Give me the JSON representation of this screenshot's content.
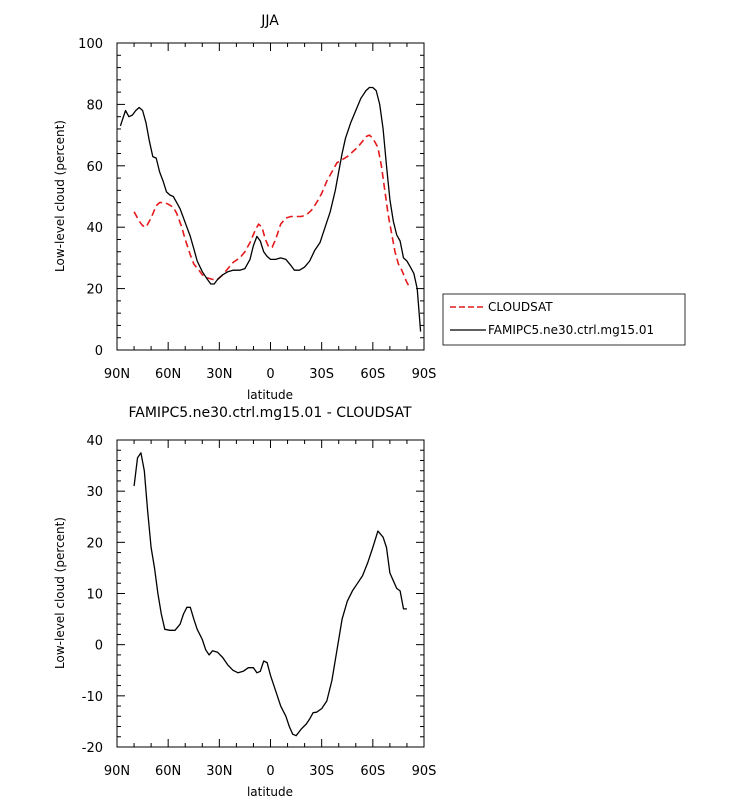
{
  "chart_data": [
    {
      "type": "line",
      "title": "JJA",
      "xlabel": "latitude",
      "ylabel": "Low-level cloud (percent)",
      "xlim": [
        90,
        -90
      ],
      "ylim": [
        0,
        100
      ],
      "x_tick_values": [
        90,
        60,
        30,
        0,
        -30,
        -60,
        -90
      ],
      "x_tick_labels": [
        "90N",
        "60N",
        "30N",
        "0",
        "30S",
        "60S",
        "90S"
      ],
      "y_ticks": [
        0,
        20,
        40,
        60,
        80,
        100
      ],
      "grid": false,
      "legend_position": "right",
      "series": [
        {
          "name": "CLOUDSAT",
          "color": "#e41a1c",
          "dash": "dashed",
          "points": [
            [
              80,
              45
            ],
            [
              77,
              42
            ],
            [
              75,
              40.5
            ],
            [
              73,
              40
            ],
            [
              70,
              43
            ],
            [
              67,
              47
            ],
            [
              65,
              48
            ],
            [
              62,
              48
            ],
            [
              60,
              47.5
            ],
            [
              57,
              46.5
            ],
            [
              55,
              44.5
            ],
            [
              52,
              40
            ],
            [
              50,
              36
            ],
            [
              47,
              31
            ],
            [
              45,
              28
            ],
            [
              42,
              26
            ],
            [
              40,
              24.5
            ],
            [
              37,
              23.5
            ],
            [
              34,
              23
            ],
            [
              31,
              23
            ],
            [
              28,
              24.5
            ],
            [
              25,
              26.5
            ],
            [
              22,
              28.5
            ],
            [
              18,
              30
            ],
            [
              15,
              32
            ],
            [
              12,
              35
            ],
            [
              9,
              39
            ],
            [
              7,
              41
            ],
            [
              5,
              40
            ],
            [
              3,
              36
            ],
            [
              1,
              33.5
            ],
            [
              -1,
              33.5
            ],
            [
              -3,
              36
            ],
            [
              -6,
              41
            ],
            [
              -9,
              43
            ],
            [
              -12,
              43.5
            ],
            [
              -15,
              43.5
            ],
            [
              -18,
              43.5
            ],
            [
              -21,
              44
            ],
            [
              -24,
              45.5
            ],
            [
              -27,
              48
            ],
            [
              -30,
              51
            ],
            [
              -33,
              55
            ],
            [
              -36,
              58
            ],
            [
              -39,
              61
            ],
            [
              -42,
              62
            ],
            [
              -45,
              63
            ],
            [
              -48,
              64.5
            ],
            [
              -51,
              66
            ],
            [
              -54,
              68
            ],
            [
              -56,
              69.5
            ],
            [
              -58,
              70
            ],
            [
              -60,
              69
            ],
            [
              -63,
              66
            ],
            [
              -65,
              60
            ],
            [
              -67,
              52
            ],
            [
              -69,
              44
            ],
            [
              -71,
              38
            ],
            [
              -73,
              32
            ],
            [
              -75,
              28
            ],
            [
              -77,
              26
            ],
            [
              -80,
              22
            ],
            [
              -81,
              21
            ]
          ]
        },
        {
          "name": "FAMIPC5.ne30.ctrl.mg15.01",
          "color": "#000000",
          "dash": "solid",
          "points": [
            [
              88,
              73
            ],
            [
              85,
              78
            ],
            [
              83,
              76
            ],
            [
              81,
              76.5
            ],
            [
              79,
              78
            ],
            [
              77,
              79
            ],
            [
              75,
              78
            ],
            [
              73,
              74
            ],
            [
              71,
              68
            ],
            [
              69,
              63
            ],
            [
              67,
              62.5
            ],
            [
              65,
              58
            ],
            [
              63,
              55
            ],
            [
              61,
              51.5
            ],
            [
              59,
              50.5
            ],
            [
              57,
              50
            ],
            [
              55,
              48
            ],
            [
              53,
              46
            ],
            [
              51,
              43
            ],
            [
              49,
              40
            ],
            [
              47,
              37
            ],
            [
              45,
              33
            ],
            [
              43,
              29
            ],
            [
              40,
              25.5
            ],
            [
              37,
              23
            ],
            [
              35,
              21.5
            ],
            [
              33,
              21.5
            ],
            [
              31,
              23
            ],
            [
              28,
              24.5
            ],
            [
              25,
              25.5
            ],
            [
              22,
              26
            ],
            [
              18,
              26
            ],
            [
              15,
              26.5
            ],
            [
              12,
              29.5
            ],
            [
              10,
              34
            ],
            [
              8,
              37
            ],
            [
              6,
              35.5
            ],
            [
              4,
              32
            ],
            [
              2,
              30.5
            ],
            [
              0,
              29.5
            ],
            [
              -3,
              29.5
            ],
            [
              -6,
              30
            ],
            [
              -9,
              29.5
            ],
            [
              -12,
              27.5
            ],
            [
              -14,
              26
            ],
            [
              -17,
              26
            ],
            [
              -20,
              27
            ],
            [
              -23,
              29
            ],
            [
              -26,
              32.5
            ],
            [
              -29,
              35
            ],
            [
              -32,
              40
            ],
            [
              -35,
              45
            ],
            [
              -38,
              52
            ],
            [
              -40,
              58
            ],
            [
              -42,
              64
            ],
            [
              -44,
              69
            ],
            [
              -47,
              74
            ],
            [
              -50,
              78
            ],
            [
              -53,
              82
            ],
            [
              -56,
              84.5
            ],
            [
              -58,
              85.5
            ],
            [
              -60,
              85.5
            ],
            [
              -62,
              84.5
            ],
            [
              -64,
              80
            ],
            [
              -66,
              72
            ],
            [
              -68,
              60
            ],
            [
              -70,
              49
            ],
            [
              -72,
              42
            ],
            [
              -74,
              37.5
            ],
            [
              -76,
              35.5
            ],
            [
              -78,
              30
            ],
            [
              -80,
              29
            ],
            [
              -82,
              27
            ],
            [
              -84,
              25
            ],
            [
              -86,
              20
            ],
            [
              -88,
              6
            ]
          ]
        }
      ]
    },
    {
      "type": "line",
      "title": "FAMIPC5.ne30.ctrl.mg15.01 - CLOUDSAT",
      "xlabel": "latitude",
      "ylabel": "Low-level cloud (percent)",
      "xlim": [
        90,
        -90
      ],
      "ylim": [
        -20,
        40
      ],
      "x_tick_values": [
        90,
        60,
        30,
        0,
        -30,
        -60,
        -90
      ],
      "x_tick_labels": [
        "90N",
        "60N",
        "30N",
        "0",
        "30S",
        "60S",
        "90S"
      ],
      "y_ticks": [
        -20,
        -10,
        0,
        10,
        20,
        30,
        40
      ],
      "grid": false,
      "series": [
        {
          "name": "FAMIPC5.ne30.ctrl.mg15.01 - CLOUDSAT",
          "color": "#000000",
          "dash": "solid",
          "points": [
            [
              80,
              31
            ],
            [
              78,
              36.5
            ],
            [
              76,
              37.5
            ],
            [
              74,
              34
            ],
            [
              72,
              26
            ],
            [
              70,
              19
            ],
            [
              68,
              15
            ],
            [
              66,
              10
            ],
            [
              64,
              6
            ],
            [
              62,
              3
            ],
            [
              59,
              2.8
            ],
            [
              56,
              2.8
            ],
            [
              53,
              4
            ],
            [
              51,
              6
            ],
            [
              49,
              7.3
            ],
            [
              47,
              7.3
            ],
            [
              45,
              5
            ],
            [
              43,
              3
            ],
            [
              40,
              1
            ],
            [
              38,
              -1
            ],
            [
              36,
              -2
            ],
            [
              34,
              -1.2
            ],
            [
              31,
              -1.5
            ],
            [
              28,
              -2.5
            ],
            [
              25,
              -4
            ],
            [
              22,
              -5
            ],
            [
              19,
              -5.5
            ],
            [
              16,
              -5.2
            ],
            [
              13,
              -4.5
            ],
            [
              10,
              -4.5
            ],
            [
              8,
              -5.5
            ],
            [
              6,
              -5.2
            ],
            [
              4,
              -3.2
            ],
            [
              2,
              -3.5
            ],
            [
              0,
              -6
            ],
            [
              -3,
              -9
            ],
            [
              -6,
              -12
            ],
            [
              -9,
              -14
            ],
            [
              -11,
              -16
            ],
            [
              -13,
              -17.5
            ],
            [
              -15,
              -17.8
            ],
            [
              -18,
              -16.5
            ],
            [
              -21,
              -15.5
            ],
            [
              -23,
              -14.5
            ],
            [
              -25,
              -13.3
            ],
            [
              -27,
              -13.2
            ],
            [
              -30,
              -12.5
            ],
            [
              -33,
              -11
            ],
            [
              -36,
              -7
            ],
            [
              -39,
              -1
            ],
            [
              -42,
              5
            ],
            [
              -45,
              8.5
            ],
            [
              -48,
              10.5
            ],
            [
              -51,
              12
            ],
            [
              -54,
              13.5
            ],
            [
              -57,
              16
            ],
            [
              -60,
              19
            ],
            [
              -63,
              22.2
            ],
            [
              -66,
              21
            ],
            [
              -68,
              19
            ],
            [
              -70,
              14
            ],
            [
              -72,
              12.5
            ],
            [
              -74,
              11
            ],
            [
              -76,
              10.5
            ],
            [
              -78,
              7
            ],
            [
              -80,
              7
            ]
          ]
        }
      ]
    }
  ]
}
